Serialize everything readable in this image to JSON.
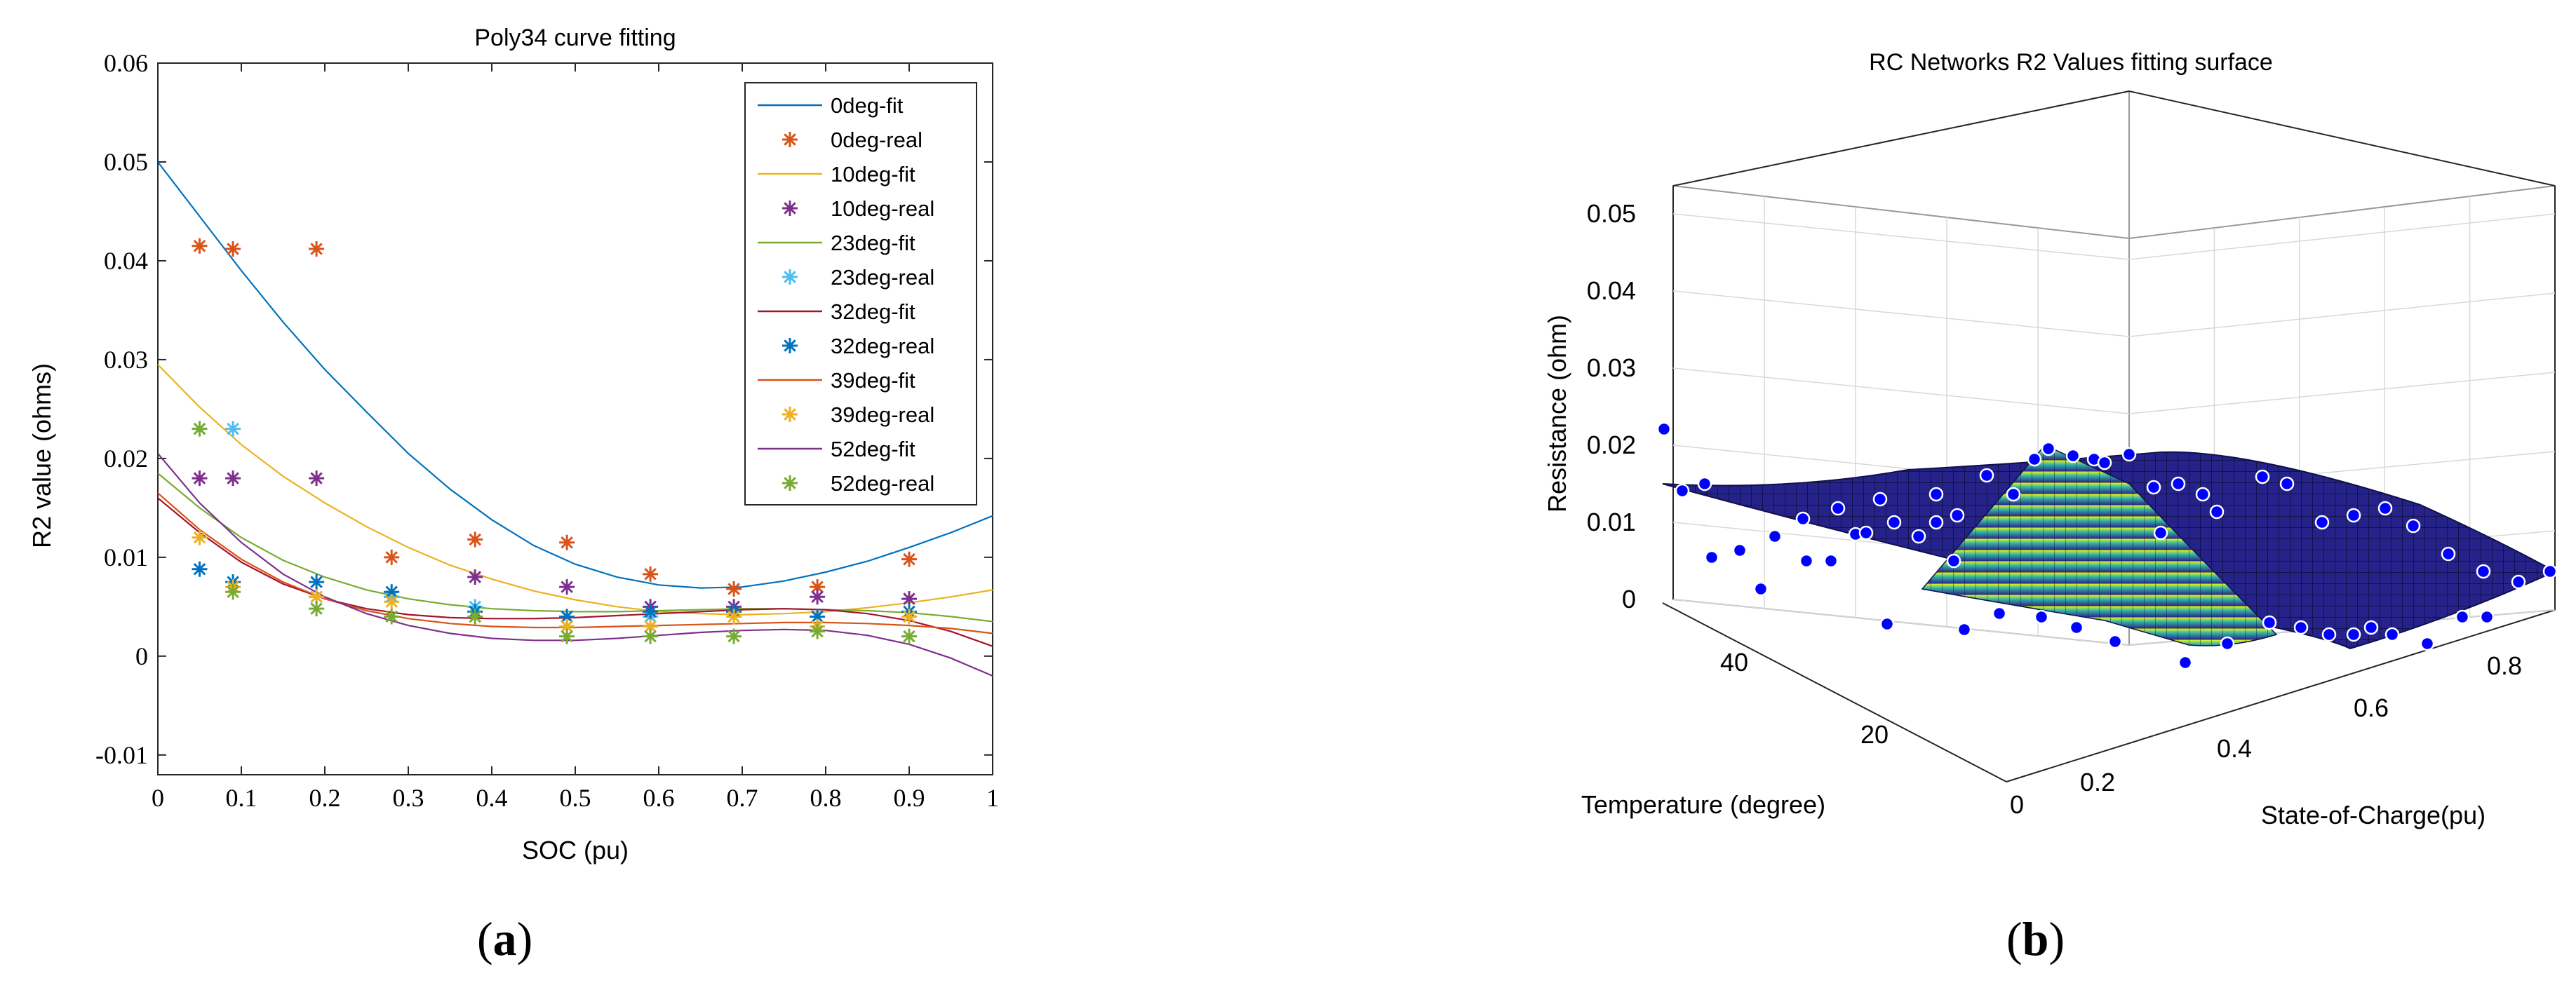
{
  "panels": [
    {
      "label": "(a)",
      "label_open": "(",
      "label_letter": "a",
      "label_close": ")"
    },
    {
      "label": "(b)",
      "label_open": "(",
      "label_letter": "b",
      "label_close": ")"
    }
  ],
  "chart_data": [
    {
      "type": "line",
      "title": "Poly34 curve fitting",
      "xlabel": "SOC (pu)",
      "ylabel": "R2 value (ohms)",
      "xlim": [
        0,
        1
      ],
      "ylim": [
        -0.012,
        0.06
      ],
      "xticks": [
        "0",
        "0.1",
        "0.2",
        "0.3",
        "0.4",
        "0.5",
        "0.6",
        "0.7",
        "0.8",
        "0.9",
        "1"
      ],
      "yticks": [
        "-0.01",
        "0",
        "0.01",
        "0.02",
        "0.03",
        "0.04",
        "0.05",
        "0.06"
      ],
      "grid": false,
      "legend_position": "top-right",
      "legend_order": [
        "0deg-fit",
        "0deg-real",
        "10deg-fit",
        "10deg-real",
        "23deg-fit",
        "23deg-real",
        "32deg-fit",
        "32deg-real",
        "39deg-fit",
        "39deg-real",
        "52deg-fit",
        "52deg-real"
      ],
      "fit_series": [
        {
          "name": "0deg-fit",
          "color": "#0072BD",
          "x": [
            0,
            0.05,
            0.1,
            0.15,
            0.2,
            0.25,
            0.3,
            0.35,
            0.4,
            0.45,
            0.5,
            0.55,
            0.6,
            0.65,
            0.7,
            0.75,
            0.8,
            0.85,
            0.9,
            0.95,
            1.0
          ],
          "y": [
            0.05,
            0.0445,
            0.039,
            0.0338,
            0.029,
            0.0247,
            0.0205,
            0.0169,
            0.0138,
            0.0112,
            0.0093,
            0.008,
            0.0072,
            0.0069,
            0.007,
            0.0076,
            0.0085,
            0.0096,
            0.011,
            0.0125,
            0.0142
          ]
        },
        {
          "name": "10deg-fit",
          "color": "#EDB120",
          "x": [
            0,
            0.05,
            0.1,
            0.15,
            0.2,
            0.25,
            0.3,
            0.35,
            0.4,
            0.45,
            0.5,
            0.55,
            0.6,
            0.65,
            0.7,
            0.75,
            0.8,
            0.85,
            0.9,
            0.95,
            1.0
          ],
          "y": [
            0.0295,
            0.0252,
            0.0214,
            0.0182,
            0.0155,
            0.0131,
            0.011,
            0.0092,
            0.0078,
            0.0066,
            0.0057,
            0.005,
            0.0045,
            0.0043,
            0.0042,
            0.0043,
            0.0045,
            0.0049,
            0.0054,
            0.006,
            0.0067
          ]
        },
        {
          "name": "23deg-fit",
          "color": "#77AC30",
          "x": [
            0,
            0.05,
            0.1,
            0.15,
            0.2,
            0.25,
            0.3,
            0.35,
            0.4,
            0.45,
            0.5,
            0.55,
            0.6,
            0.65,
            0.7,
            0.75,
            0.8,
            0.85,
            0.9,
            0.95,
            1.0
          ],
          "y": [
            0.0185,
            0.015,
            0.012,
            0.0097,
            0.008,
            0.0067,
            0.0058,
            0.0052,
            0.0048,
            0.0046,
            0.0045,
            0.0045,
            0.0046,
            0.0047,
            0.0048,
            0.0048,
            0.0047,
            0.0046,
            0.0044,
            0.004,
            0.0035
          ]
        },
        {
          "name": "32deg-fit",
          "color": "#A2142F",
          "x": [
            0,
            0.05,
            0.1,
            0.15,
            0.2,
            0.25,
            0.3,
            0.35,
            0.4,
            0.45,
            0.5,
            0.55,
            0.6,
            0.65,
            0.7,
            0.75,
            0.8,
            0.85,
            0.9,
            0.95,
            1.0
          ],
          "y": [
            0.016,
            0.0125,
            0.0095,
            0.0073,
            0.0058,
            0.0048,
            0.0042,
            0.0039,
            0.0038,
            0.0038,
            0.0039,
            0.0041,
            0.0043,
            0.0045,
            0.0047,
            0.0048,
            0.0047,
            0.0043,
            0.0036,
            0.0025,
            0.001
          ]
        },
        {
          "name": "39deg-fit",
          "color": "#D95319",
          "x": [
            0,
            0.05,
            0.1,
            0.15,
            0.2,
            0.25,
            0.3,
            0.35,
            0.4,
            0.45,
            0.5,
            0.55,
            0.6,
            0.65,
            0.7,
            0.75,
            0.8,
            0.85,
            0.9,
            0.95,
            1.0
          ],
          "y": [
            0.0165,
            0.0128,
            0.0098,
            0.0075,
            0.0058,
            0.0046,
            0.0038,
            0.0033,
            0.003,
            0.0029,
            0.0029,
            0.003,
            0.0031,
            0.0032,
            0.0033,
            0.0034,
            0.0034,
            0.0033,
            0.0031,
            0.0028,
            0.0023
          ]
        },
        {
          "name": "52deg-fit",
          "color": "#7E2F8E",
          "x": [
            0,
            0.05,
            0.1,
            0.15,
            0.2,
            0.25,
            0.3,
            0.35,
            0.4,
            0.45,
            0.5,
            0.55,
            0.6,
            0.65,
            0.7,
            0.75,
            0.8,
            0.85,
            0.9,
            0.95,
            1.0
          ],
          "y": [
            0.0205,
            0.0155,
            0.0115,
            0.0083,
            0.006,
            0.0043,
            0.0031,
            0.0023,
            0.0018,
            0.0016,
            0.0016,
            0.0018,
            0.0021,
            0.0024,
            0.0026,
            0.0027,
            0.0026,
            0.0021,
            0.0012,
            -0.0002,
            -0.002
          ]
        }
      ],
      "real_series": [
        {
          "name": "0deg-real",
          "color": "#D95319",
          "x": [
            0.05,
            0.09,
            0.19,
            0.28,
            0.38,
            0.49,
            0.59,
            0.69,
            0.79,
            0.9
          ],
          "y": [
            0.0415,
            0.0412,
            0.0412,
            0.01,
            0.0118,
            0.0115,
            0.0083,
            0.0068,
            0.007,
            0.0098
          ]
        },
        {
          "name": "10deg-real",
          "color": "#7E2F8E",
          "x": [
            0.05,
            0.09,
            0.19,
            0.28,
            0.38,
            0.49,
            0.59,
            0.69,
            0.79,
            0.9
          ],
          "y": [
            0.018,
            0.018,
            0.018,
            0.006,
            0.008,
            0.007,
            0.005,
            0.005,
            0.006,
            0.0058
          ]
        },
        {
          "name": "23deg-real",
          "color": "#4DBEEE",
          "x": [
            0.05,
            0.09,
            0.19,
            0.28,
            0.38,
            0.49,
            0.59,
            0.69,
            0.79,
            0.9
          ],
          "y": [
            0.023,
            0.023,
            0.006,
            0.006,
            0.005,
            0.004,
            0.004,
            0.0045,
            0.004,
            0.004
          ]
        },
        {
          "name": "32deg-real",
          "color": "#0072BD",
          "x": [
            0.05,
            0.09,
            0.19,
            0.28,
            0.38,
            0.49,
            0.59,
            0.69,
            0.79,
            0.9
          ],
          "y": [
            0.0088,
            0.0075,
            0.0075,
            0.0065,
            0.0045,
            0.004,
            0.0045,
            0.0045,
            0.004,
            0.0045
          ]
        },
        {
          "name": "39deg-real",
          "color": "#EDB120",
          "x": [
            0.05,
            0.09,
            0.19,
            0.28,
            0.38,
            0.49,
            0.59,
            0.69,
            0.79,
            0.9
          ],
          "y": [
            0.012,
            0.007,
            0.006,
            0.0055,
            0.004,
            0.003,
            0.003,
            0.004,
            0.003,
            0.004
          ]
        },
        {
          "name": "52deg-real",
          "color": "#77AC30",
          "x": [
            0.05,
            0.09,
            0.19,
            0.28,
            0.38,
            0.49,
            0.59,
            0.69,
            0.79,
            0.9
          ],
          "y": [
            0.023,
            0.0065,
            0.0048,
            0.004,
            0.004,
            0.002,
            0.002,
            0.002,
            0.0025,
            0.002
          ]
        }
      ]
    },
    {
      "type": "surface",
      "title": "RC Networks R2 Values fitting surface",
      "xlabel": "State-of-Charge(pu)",
      "ylabel": "Temperature (degree)",
      "zlabel": "Resistance (ohm)",
      "xticks": [
        "0.2",
        "0.4",
        "0.6",
        "0.8"
      ],
      "yticks": [
        "0",
        "20",
        "40"
      ],
      "zticks": [
        "0",
        "0.01",
        "0.02",
        "0.03",
        "0.04",
        "0.05"
      ],
      "xlim": [
        0.05,
        0.9
      ],
      "ylim": [
        0,
        52
      ],
      "zlim": [
        0,
        0.05
      ],
      "colormap": "parula",
      "grid": true,
      "point_color": "#0000FF",
      "peak": {
        "soc": 0.05,
        "temp": 0,
        "value": 0.0205
      },
      "scatter_count": 60
    }
  ]
}
